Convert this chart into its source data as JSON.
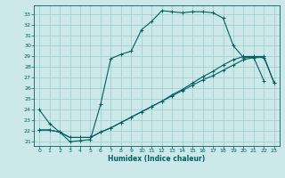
{
  "xlabel": "Humidex (Indice chaleur)",
  "bg_color": "#cce8e8",
  "grid_color": "#99cccc",
  "line_color": "#006060",
  "xlim": [
    -0.5,
    23.5
  ],
  "ylim": [
    20.6,
    33.8
  ],
  "xticks": [
    0,
    1,
    2,
    3,
    4,
    5,
    6,
    7,
    8,
    9,
    10,
    11,
    12,
    13,
    14,
    15,
    16,
    17,
    18,
    19,
    20,
    21,
    22,
    23
  ],
  "yticks": [
    21,
    22,
    23,
    24,
    25,
    26,
    27,
    28,
    29,
    30,
    31,
    32,
    33
  ],
  "curve1_x": [
    0,
    1,
    2,
    3,
    4,
    5,
    6,
    7,
    8,
    9,
    10,
    11,
    12,
    13,
    14,
    15,
    16,
    17,
    18,
    19,
    20,
    21,
    22
  ],
  "curve1_y": [
    24.0,
    22.7,
    21.9,
    21.0,
    21.1,
    21.2,
    24.5,
    28.8,
    29.2,
    29.5,
    31.5,
    32.3,
    33.3,
    33.2,
    33.1,
    33.2,
    33.2,
    33.1,
    32.6,
    30.0,
    28.9,
    28.9,
    26.7
  ],
  "curve2_x": [
    0,
    1,
    2,
    3,
    4,
    5,
    6,
    7,
    8,
    9,
    10,
    11,
    12,
    13,
    14,
    15,
    16,
    17,
    18,
    19,
    20,
    21,
    22,
    23
  ],
  "curve2_y": [
    22.1,
    22.1,
    21.9,
    21.4,
    21.4,
    21.4,
    21.9,
    22.3,
    22.8,
    23.3,
    23.8,
    24.3,
    24.8,
    25.3,
    25.8,
    26.3,
    26.8,
    27.2,
    27.7,
    28.2,
    28.7,
    28.9,
    28.9,
    26.5
  ],
  "curve3_x": [
    0,
    1,
    2,
    3,
    4,
    5,
    6,
    7,
    8,
    9,
    10,
    11,
    12,
    13,
    14,
    15,
    16,
    17,
    18,
    19,
    20,
    21,
    22,
    23
  ],
  "curve3_y": [
    22.1,
    22.1,
    21.9,
    21.4,
    21.4,
    21.4,
    21.9,
    22.3,
    22.8,
    23.3,
    23.8,
    24.3,
    24.8,
    25.4,
    25.9,
    26.5,
    27.1,
    27.6,
    28.2,
    28.7,
    29.0,
    29.0,
    29.0,
    26.5
  ]
}
